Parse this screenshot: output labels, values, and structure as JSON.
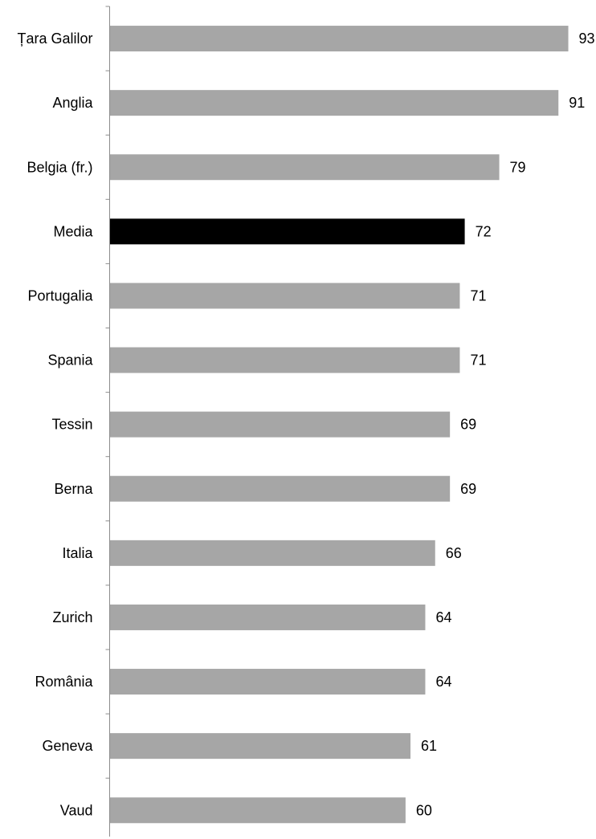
{
  "chart_data": {
    "type": "bar",
    "orientation": "horizontal",
    "categories": [
      "Țara Galilor",
      "Anglia",
      "Belgia (fr.)",
      "Media",
      "Portugalia",
      "Spania",
      "Tessin",
      "Berna",
      "Italia",
      "Zurich",
      "România",
      "Geneva",
      "Vaud"
    ],
    "values": [
      93,
      91,
      79,
      72,
      71,
      71,
      69,
      69,
      66,
      64,
      64,
      61,
      60
    ],
    "highlight_category": "Media",
    "title": "",
    "xlabel": "",
    "ylabel": "",
    "xlim": [
      0,
      100
    ],
    "grid": false,
    "data_labels": true,
    "legend": "none",
    "colors": {
      "bar": "#a6a6a6",
      "highlight": "#000000",
      "axis": "#8c8c8c",
      "text": "#000000"
    }
  }
}
